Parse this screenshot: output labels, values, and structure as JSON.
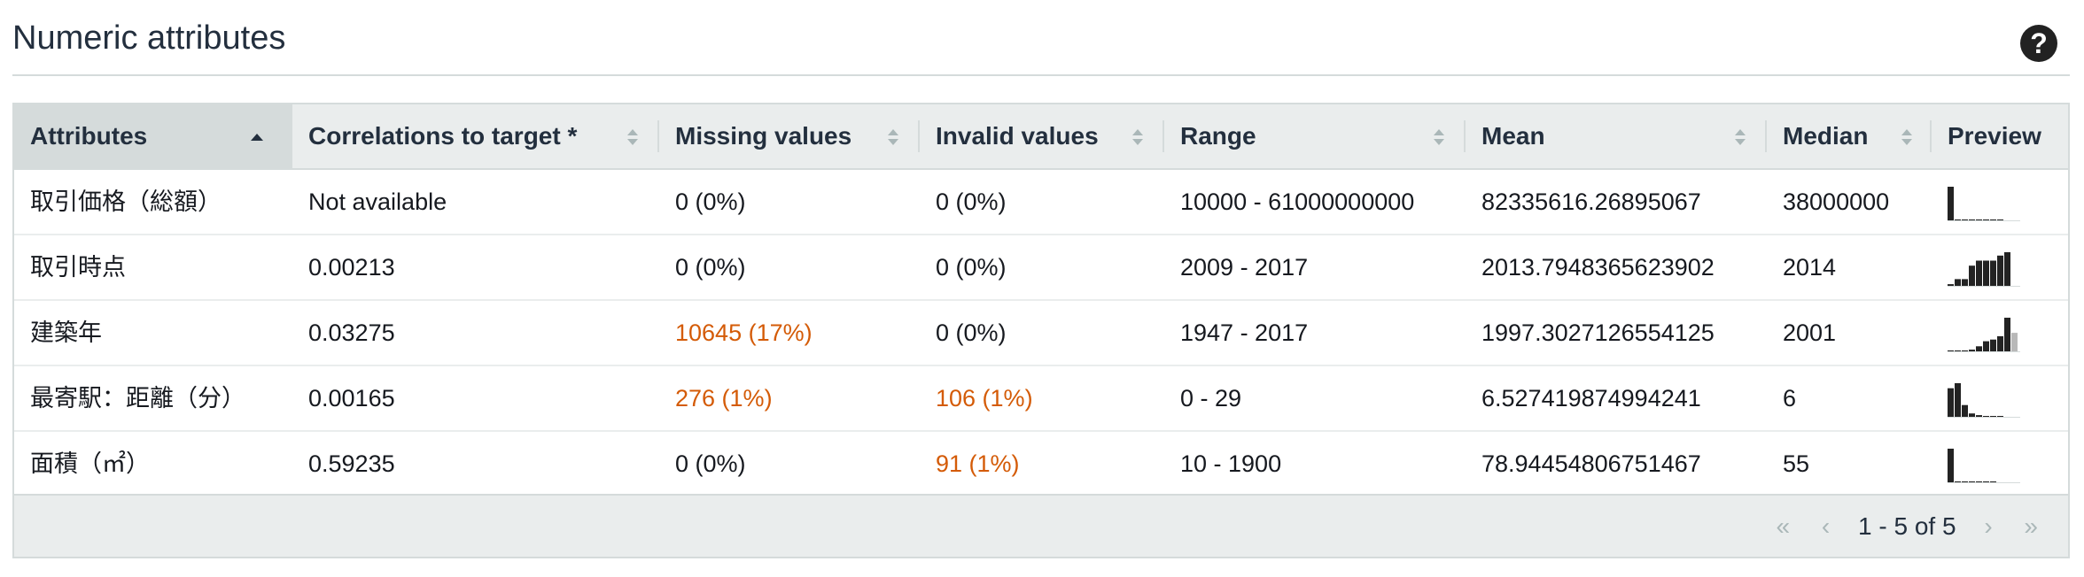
{
  "header": {
    "title": "Numeric attributes",
    "help_icon": "question-icon"
  },
  "table": {
    "columns": [
      {
        "label": "Attributes",
        "sort": "asc"
      },
      {
        "label": "Correlations to target *",
        "sort": "none"
      },
      {
        "label": "Missing values",
        "sort": "none"
      },
      {
        "label": "Invalid values",
        "sort": "none"
      },
      {
        "label": "Range",
        "sort": "none"
      },
      {
        "label": "Mean",
        "sort": "none"
      },
      {
        "label": "Median",
        "sort": "none"
      },
      {
        "label": "Preview"
      }
    ],
    "rows": [
      {
        "attribute": "取引価格（総額）",
        "correlation": "Not available",
        "missing": "0 (0%)",
        "missing_warn": false,
        "invalid": "0 (0%)",
        "invalid_warn": false,
        "range": "10000 - 61000000000",
        "mean": "82335616.26895067",
        "median": "38000000",
        "preview": [
          1.0,
          0.02,
          0.02,
          0.02,
          0.02,
          0.02,
          0.02,
          0.02
        ]
      },
      {
        "attribute": "取引時点",
        "correlation": "0.00213",
        "missing": "0 (0%)",
        "missing_warn": false,
        "invalid": "0 (0%)",
        "invalid_warn": false,
        "range": "2009 - 2017",
        "mean": "2013.7948365623902",
        "median": "2014",
        "preview": [
          0.05,
          0.2,
          0.2,
          0.6,
          0.75,
          0.75,
          0.75,
          0.9,
          1.0
        ]
      },
      {
        "attribute": "建築年",
        "correlation": "0.03275",
        "missing": "10645 (17%)",
        "missing_warn": true,
        "invalid": "0 (0%)",
        "invalid_warn": false,
        "range": "1947 - 2017",
        "mean": "1997.3027126554125",
        "median": "2001",
        "preview": [
          0.02,
          0.02,
          0.02,
          0.05,
          0.15,
          0.3,
          0.35,
          0.45,
          1.0,
          0.55
        ]
      },
      {
        "attribute": "最寄駅：距離（分）",
        "correlation": "0.00165",
        "missing": "276 (1%)",
        "missing_warn": true,
        "invalid": "106 (1%)",
        "invalid_warn": true,
        "range": "0 - 29",
        "mean": "6.527419874994241",
        "median": "6",
        "preview": [
          0.85,
          1.0,
          0.35,
          0.1,
          0.05,
          0.02,
          0.02,
          0.02
        ]
      },
      {
        "attribute": "面積（㎡）",
        "correlation": "0.59235",
        "missing": "0 (0%)",
        "missing_warn": false,
        "invalid": "91 (1%)",
        "invalid_warn": true,
        "range": "10 - 1900",
        "mean": "78.94454806751467",
        "median": "55",
        "preview": [
          1.0,
          0.02,
          0.02,
          0.02,
          0.02,
          0.02,
          0.02
        ]
      }
    ]
  },
  "pagination": {
    "first": "«",
    "prev": "‹",
    "label": "1 - 5 of 5",
    "next": "›",
    "last": "»"
  },
  "colors": {
    "warning": "#d45b07",
    "header_bg": "#eaeded",
    "sorted_header_bg": "#d5dbdb"
  }
}
